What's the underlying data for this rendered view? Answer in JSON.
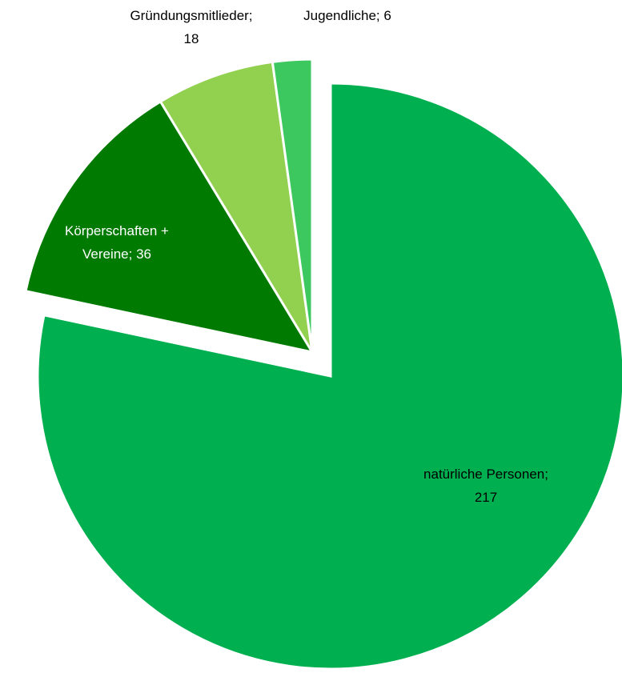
{
  "chart_data": {
    "type": "pie",
    "title": "",
    "exploded": true,
    "slices": [
      {
        "label": "natürliche Personen",
        "value": 217,
        "color": "#00b050",
        "label_lines": [
          "natürliche Personen;",
          "217"
        ],
        "label_color": "#000000"
      },
      {
        "label": "Körperschaften + Vereine",
        "value": 36,
        "color": "#007a00",
        "label_lines": [
          "Körperschaften +",
          "Vereine; 36"
        ],
        "label_color": "#ffffff"
      },
      {
        "label": "Gründungsmitlieder",
        "value": 18,
        "color": "#92d050",
        "label_lines": [
          "Gründungsmitlieder;",
          "18"
        ],
        "label_color": "#000000"
      },
      {
        "label": "Jugendliche",
        "value": 6,
        "color": "#3cc85f",
        "label_lines": [
          "Jugendliche; 6"
        ],
        "label_color": "#000000"
      }
    ]
  }
}
